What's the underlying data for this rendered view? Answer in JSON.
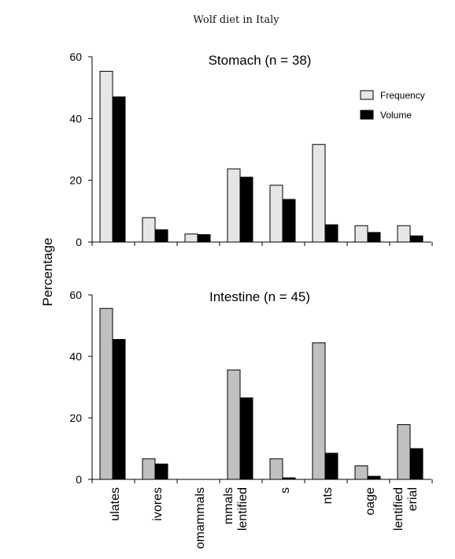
{
  "title": "Wolf diet in Italy",
  "ylabel": "Percentage",
  "colors": {
    "stomach_frequency": "#e6e6e6",
    "intestine_frequency": "#c0c0c0",
    "volume": "#000000",
    "edge": "#000000"
  },
  "chart_data": {
    "type": "bar",
    "categories": [
      "ulates",
      "ivores",
      "omammals",
      "mmals\nlentified",
      "s",
      "nts",
      "oage",
      "lentified\nerial"
    ],
    "ylabel": "Percentage",
    "ylim": [
      0,
      60
    ],
    "yticks": [
      0,
      20,
      40,
      60
    ],
    "grid": false,
    "legend_position": "top-right",
    "panels": [
      {
        "title": "Stomach (n = 38)",
        "series": [
          {
            "name": "Frequency",
            "values": [
              55.3,
              7.9,
              2.6,
              23.7,
              18.4,
              31.6,
              5.3,
              5.3
            ]
          },
          {
            "name": "Volume",
            "values": [
              47.0,
              4.0,
              2.4,
              21.0,
              13.8,
              5.6,
              3.1,
              2.0
            ]
          }
        ]
      },
      {
        "title": "Intestine (n = 45)",
        "series": [
          {
            "name": "Frequency",
            "values": [
              55.6,
              6.7,
              0,
              35.6,
              6.7,
              44.4,
              4.4,
              17.8
            ]
          },
          {
            "name": "Volume",
            "values": [
              45.5,
              5.0,
              0,
              26.5,
              0.5,
              8.5,
              1.0,
              10.0
            ]
          }
        ]
      }
    ]
  },
  "legend": {
    "frequency": "Frequency",
    "volume": "Volume"
  }
}
